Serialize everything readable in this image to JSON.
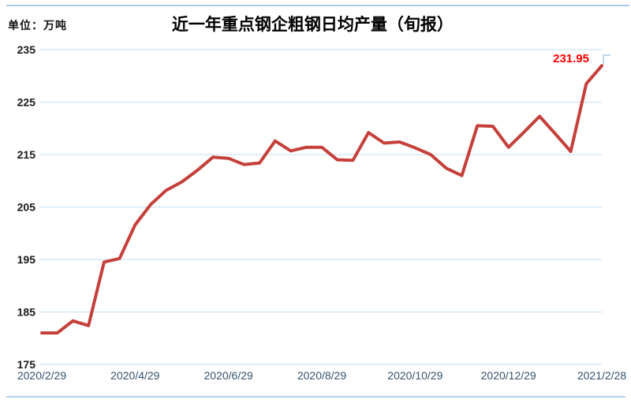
{
  "chart_data": {
    "type": "line",
    "title": "近一年重点钢企粗钢日均产量（旬报）",
    "unit_label": "单位：万吨",
    "series_name": "重点钢企粗钢日均产量",
    "x": [
      "2020/2/29",
      "2020/3/10",
      "2020/3/20",
      "2020/3/31",
      "2020/4/10",
      "2020/4/20",
      "2020/4/30",
      "2020/5/10",
      "2020/5/20",
      "2020/5/31",
      "2020/6/10",
      "2020/6/20",
      "2020/6/30",
      "2020/7/10",
      "2020/7/20",
      "2020/7/31",
      "2020/8/10",
      "2020/8/20",
      "2020/8/31",
      "2020/9/10",
      "2020/9/20",
      "2020/9/30",
      "2020/10/10",
      "2020/10/20",
      "2020/10/31",
      "2020/11/10",
      "2020/11/20",
      "2020/11/30",
      "2020/12/10",
      "2020/12/20",
      "2020/12/31",
      "2021/1/10",
      "2021/1/20",
      "2021/1/31",
      "2021/2/10",
      "2021/2/20",
      "2021/2/28"
    ],
    "values": [
      181.0,
      181.0,
      183.3,
      182.4,
      194.5,
      195.2,
      201.6,
      205.5,
      208.2,
      209.8,
      212.0,
      214.5,
      214.3,
      213.1,
      213.4,
      217.6,
      215.7,
      216.4,
      216.4,
      214.0,
      213.9,
      219.2,
      217.2,
      217.4,
      216.3,
      215.0,
      212.4,
      211.0,
      220.5,
      220.4,
      216.4,
      219.3,
      222.3,
      219.0,
      215.6,
      228.5,
      231.95
    ],
    "x_tick_labels": [
      "2020/2/29",
      "2020/4/29",
      "2020/6/29",
      "2020/8/29",
      "2020/10/29",
      "2020/12/29",
      "2021/2/28"
    ],
    "y_ticks": [
      175,
      185,
      195,
      205,
      215,
      225,
      235
    ],
    "ylim": [
      175,
      235
    ],
    "grid": "horizontal-only",
    "legend": "none",
    "last_point_label": "231.95",
    "line_color": "#c5403b",
    "last_label_color": "#ff0000",
    "grid_color": "#cfe2f2",
    "marker_color": "#a9c9e6"
  }
}
